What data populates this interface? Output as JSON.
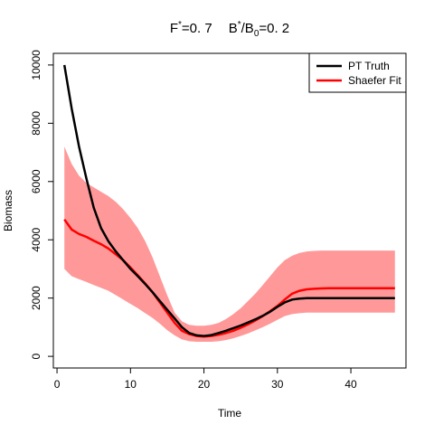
{
  "chart_data": {
    "type": "line",
    "title": {
      "f_label": "F",
      "f_sup": "*",
      "f_value": "=0. 7",
      "b_label": "B",
      "b_sup": "*",
      "b_div": "/B",
      "b_sub": "0",
      "b_value": "=0. 2"
    },
    "xlabel": "Time",
    "ylabel": "Biomass",
    "xlim": [
      -0.5,
      47.5
    ],
    "ylim": [
      -400,
      10400
    ],
    "x_ticks": [
      0,
      10,
      20,
      30,
      40
    ],
    "y_ticks": [
      0,
      2000,
      4000,
      6000,
      8000,
      10000
    ],
    "legend_position": "top-right",
    "series": [
      {
        "name": "PT Truth",
        "color": "#000000",
        "x": [
          1,
          2,
          3,
          4,
          5,
          6,
          7,
          8,
          9,
          10,
          11,
          12,
          13,
          14,
          15,
          16,
          17,
          18,
          19,
          20,
          21,
          22,
          23,
          24,
          25,
          26,
          27,
          28,
          29,
          30,
          31,
          32,
          33,
          34,
          35,
          36,
          37,
          38,
          39,
          40,
          41,
          42,
          43,
          44,
          45,
          46
        ],
        "values": [
          10000,
          8500,
          7200,
          6100,
          5100,
          4400,
          3950,
          3600,
          3300,
          3000,
          2750,
          2480,
          2200,
          1900,
          1600,
          1300,
          1000,
          800,
          720,
          700,
          730,
          800,
          880,
          970,
          1060,
          1160,
          1270,
          1390,
          1530,
          1700,
          1850,
          1950,
          1980,
          1995,
          2000,
          2000,
          2000,
          2000,
          2000,
          2000,
          2000,
          2000,
          2000,
          2000,
          2000,
          2000
        ]
      },
      {
        "name": "Shaefer Fit",
        "color": "#ff0000",
        "x": [
          1,
          2,
          3,
          4,
          5,
          6,
          7,
          8,
          9,
          10,
          11,
          12,
          13,
          14,
          15,
          16,
          17,
          18,
          19,
          20,
          21,
          22,
          23,
          24,
          25,
          26,
          27,
          28,
          29,
          30,
          31,
          32,
          33,
          34,
          35,
          36,
          37,
          38,
          39,
          40,
          41,
          42,
          43,
          44,
          45,
          46
        ],
        "values": [
          4700,
          4350,
          4200,
          4100,
          3970,
          3850,
          3700,
          3500,
          3300,
          3050,
          2780,
          2500,
          2200,
          1850,
          1500,
          1150,
          880,
          760,
          700,
          680,
          700,
          740,
          800,
          880,
          980,
          1100,
          1230,
          1380,
          1550,
          1730,
          1950,
          2150,
          2250,
          2300,
          2320,
          2330,
          2340,
          2340,
          2340,
          2340,
          2340,
          2340,
          2340,
          2340,
          2340,
          2340
        ]
      }
    ],
    "band": {
      "color": "#ff9999",
      "x": [
        1,
        2,
        3,
        4,
        5,
        6,
        7,
        8,
        9,
        10,
        11,
        12,
        13,
        14,
        15,
        16,
        17,
        18,
        19,
        20,
        21,
        22,
        23,
        24,
        25,
        26,
        27,
        28,
        29,
        30,
        31,
        32,
        33,
        34,
        35,
        36,
        37,
        38,
        39,
        40,
        41,
        42,
        43,
        44,
        45,
        46
      ],
      "upper": [
        7200,
        6600,
        6200,
        5950,
        5800,
        5650,
        5500,
        5300,
        5050,
        4750,
        4400,
        3950,
        3400,
        2750,
        2100,
        1500,
        1200,
        1080,
        1050,
        1050,
        1080,
        1150,
        1280,
        1450,
        1650,
        1900,
        2150,
        2450,
        2750,
        3050,
        3300,
        3450,
        3550,
        3600,
        3620,
        3630,
        3630,
        3630,
        3630,
        3630,
        3630,
        3630,
        3630,
        3630,
        3630,
        3630
      ],
      "lower": [
        3000,
        2750,
        2650,
        2550,
        2450,
        2350,
        2250,
        2100,
        1950,
        1800,
        1650,
        1480,
        1320,
        1120,
        900,
        720,
        580,
        520,
        500,
        500,
        500,
        520,
        560,
        620,
        700,
        790,
        890,
        1000,
        1120,
        1250,
        1380,
        1450,
        1480,
        1500,
        1500,
        1500,
        1500,
        1500,
        1500,
        1500,
        1500,
        1500,
        1500,
        1500,
        1500,
        1500
      ]
    }
  }
}
